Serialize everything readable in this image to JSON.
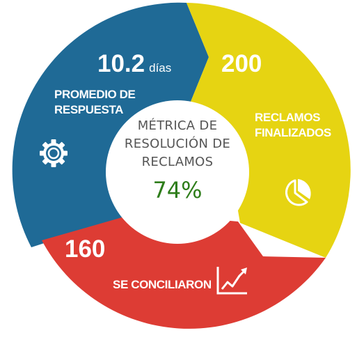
{
  "center": {
    "title_lines": [
      "MÉTRICA DE",
      "RESOLUCIÓN DE",
      "RECLAMOS"
    ],
    "percent": "74%"
  },
  "segments": [
    {
      "value": "10.2",
      "unit": "días",
      "label_lines": [
        "PROMEDIO DE",
        "RESPUESTA"
      ],
      "icon": "gear-icon",
      "color": "#1f6a96"
    },
    {
      "value": "200",
      "label_lines": [
        "RECLAMOS",
        "FINALIZADOS"
      ],
      "icon": "pie-chart-icon",
      "color": "#e6d412"
    },
    {
      "value": "160",
      "label_lines": [
        "SE CONCILIARON"
      ],
      "icon": "trend-chart-icon",
      "color": "#dd3c34"
    }
  ],
  "colors": {
    "center_fill": "#ffffff",
    "title": "#555555",
    "percent": "#2e7d1a"
  }
}
